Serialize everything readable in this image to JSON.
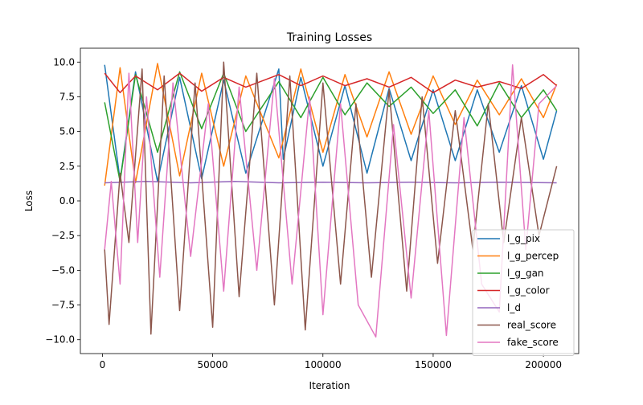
{
  "chart_data": {
    "type": "line",
    "title": "Training Losses",
    "xlabel": "Iteration",
    "ylabel": "Loss",
    "xlim": [
      -10000,
      216000
    ],
    "ylim": [
      -11,
      11
    ],
    "x_ticks": [
      0,
      50000,
      100000,
      150000,
      200000
    ],
    "x_tick_labels": [
      "0",
      "50000",
      "100000",
      "150000",
      "200000"
    ],
    "y_ticks": [
      -10.0,
      -7.5,
      -5.0,
      -2.5,
      0.0,
      2.5,
      5.0,
      7.5,
      10.0
    ],
    "y_tick_labels": [
      "−10.0",
      "−7.5",
      "−5.0",
      "−2.5",
      "0.0",
      "2.5",
      "5.0",
      "7.5",
      "10.0"
    ],
    "grid": false,
    "legend_position": "lower-right",
    "series": [
      {
        "name": "l_g_pix",
        "color": "#1f77b4",
        "x": [
          1000,
          8000,
          15000,
          25000,
          35000,
          45000,
          55000,
          65000,
          80000,
          82000,
          90000,
          100000,
          110000,
          120000,
          130000,
          140000,
          150000,
          160000,
          170000,
          180000,
          190000,
          200000,
          206000
        ],
        "y": [
          9.8,
          1.5,
          9.3,
          1.4,
          8.9,
          1.6,
          8.7,
          2.0,
          9.5,
          3.0,
          8.9,
          2.5,
          8.3,
          2.0,
          8.1,
          2.9,
          8.0,
          2.9,
          8.0,
          3.5,
          8.3,
          3.0,
          6.5
        ]
      },
      {
        "name": "l_g_percep",
        "color": "#ff7f0e",
        "x": [
          1000,
          8000,
          15000,
          25000,
          35000,
          45000,
          55000,
          65000,
          80000,
          90000,
          100000,
          110000,
          120000,
          130000,
          140000,
          150000,
          160000,
          170000,
          180000,
          190000,
          200000,
          206000
        ],
        "y": [
          1.1,
          9.6,
          1.3,
          9.9,
          1.8,
          9.2,
          2.5,
          9.0,
          3.1,
          9.5,
          3.5,
          9.1,
          4.6,
          9.3,
          4.8,
          9.0,
          5.5,
          8.7,
          6.2,
          8.8,
          6.0,
          8.4
        ]
      },
      {
        "name": "l_g_gan",
        "color": "#2ca02c",
        "x": [
          1000,
          8000,
          15000,
          25000,
          35000,
          45000,
          55000,
          65000,
          80000,
          90000,
          100000,
          110000,
          120000,
          130000,
          140000,
          150000,
          160000,
          170000,
          180000,
          190000,
          200000,
          206000
        ],
        "y": [
          7.1,
          1.4,
          9.1,
          3.5,
          9.3,
          5.2,
          9.2,
          5.0,
          8.6,
          6.0,
          8.9,
          6.2,
          8.5,
          6.8,
          8.2,
          6.3,
          8.0,
          5.4,
          8.5,
          6.0,
          8.0,
          6.5
        ]
      },
      {
        "name": "l_g_color",
        "color": "#d62728",
        "x": [
          1000,
          8000,
          15000,
          25000,
          35000,
          45000,
          55000,
          65000,
          80000,
          90000,
          100000,
          110000,
          120000,
          130000,
          140000,
          150000,
          160000,
          170000,
          180000,
          190000,
          200000,
          206000
        ],
        "y": [
          9.2,
          7.8,
          9.0,
          8.0,
          9.2,
          7.9,
          8.9,
          8.2,
          9.1,
          8.3,
          9.0,
          8.3,
          8.8,
          8.2,
          8.9,
          7.8,
          8.7,
          8.2,
          8.6,
          8.1,
          9.1,
          8.3
        ]
      },
      {
        "name": "l_d",
        "color": "#9467bd",
        "x": [
          1000,
          20000,
          40000,
          60000,
          80000,
          100000,
          120000,
          140000,
          160000,
          180000,
          206000
        ],
        "y": [
          1.3,
          1.4,
          1.3,
          1.4,
          1.3,
          1.35,
          1.3,
          1.35,
          1.3,
          1.35,
          1.3
        ]
      },
      {
        "name": "real_score",
        "color": "#8c564b",
        "x": [
          1000,
          3000,
          8000,
          12000,
          18000,
          22000,
          28000,
          35000,
          42000,
          50000,
          55000,
          62000,
          70000,
          78000,
          85000,
          92000,
          100000,
          108000,
          115000,
          122000,
          130000,
          138000,
          145000,
          152000,
          160000,
          168000,
          175000,
          182000,
          190000,
          198000,
          206000
        ],
        "y": [
          -3.5,
          -8.9,
          2.0,
          -3.0,
          9.5,
          -9.6,
          9.0,
          -7.9,
          8.5,
          -9.1,
          10.0,
          -6.9,
          9.2,
          -7.5,
          9.0,
          -9.3,
          8.5,
          -6.0,
          7.0,
          -5.5,
          8.0,
          -6.5,
          7.5,
          -4.5,
          6.5,
          -3.5,
          7.0,
          -3.0,
          6.0,
          -2.5,
          2.5
        ]
      },
      {
        "name": "fake_score",
        "color": "#e377c2",
        "x": [
          1000,
          4000,
          8000,
          12000,
          16000,
          20000,
          26000,
          32000,
          40000,
          48000,
          55000,
          62000,
          70000,
          78000,
          86000,
          94000,
          100000,
          108000,
          116000,
          124000,
          132000,
          140000,
          148000,
          156000,
          164000,
          172000,
          180000,
          186000,
          192000,
          198000,
          206000
        ],
        "y": [
          -3.5,
          1.4,
          -6.0,
          9.2,
          -3.0,
          7.5,
          -5.5,
          8.5,
          -4.0,
          7.0,
          -6.5,
          8.2,
          -5.0,
          8.8,
          -6.0,
          7.5,
          -8.2,
          7.0,
          -7.5,
          -9.8,
          5.5,
          -7.0,
          6.5,
          -9.7,
          6.0,
          -6.0,
          -8.0,
          9.8,
          -3.5,
          7.0,
          8.3
        ]
      }
    ]
  }
}
